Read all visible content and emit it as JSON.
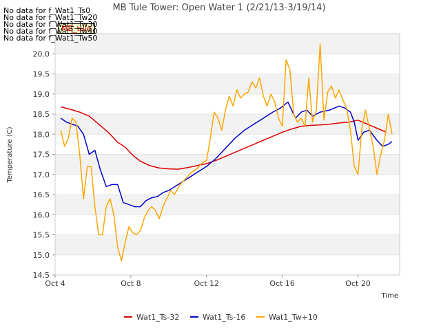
{
  "chart_data": {
    "type": "line",
    "title": "MB Tule Tower: Open Water 1 (2/21/13-3/19/14)",
    "xlabel": "Time",
    "ylabel": "Temperature (C)",
    "xlim": [
      4.0,
      22.2
    ],
    "ylim": [
      14.5,
      20.5
    ],
    "x_ticks": [
      4,
      8,
      12,
      16,
      20
    ],
    "x_tick_labels": [
      "Oct 4",
      "Oct 8",
      "Oct 12",
      "Oct 16",
      "Oct 20"
    ],
    "y_ticks": [
      14.5,
      15.0,
      15.5,
      16.0,
      16.5,
      17.0,
      17.5,
      18.0,
      18.5,
      19.0,
      19.5,
      20.0
    ],
    "y_tick_labels": [
      "14.5",
      "15.0",
      "15.5",
      "16.0",
      "16.5",
      "17.0",
      "17.5",
      "18.0",
      "18.5",
      "19.0",
      "19.5",
      "20.0"
    ],
    "legend_position": "bottom-center",
    "series": [
      {
        "name": "Wat1_Ts-32",
        "color": "#dd0000",
        "x": [
          4.3,
          4.8,
          5.3,
          5.8,
          6.3,
          6.8,
          7.3,
          7.7,
          8.1,
          8.5,
          9.0,
          9.5,
          10.0,
          10.5,
          11.0,
          11.5,
          12.0,
          12.5,
          13.0,
          13.5,
          14.0,
          14.5,
          15.0,
          15.5,
          16.0,
          16.5,
          17.0,
          17.5,
          18.0,
          18.5,
          19.0,
          19.5,
          20.0,
          20.5,
          21.0,
          21.5
        ],
        "values": [
          18.68,
          18.62,
          18.55,
          18.45,
          18.25,
          18.05,
          17.8,
          17.68,
          17.48,
          17.33,
          17.22,
          17.16,
          17.14,
          17.13,
          17.17,
          17.22,
          17.27,
          17.35,
          17.45,
          17.55,
          17.65,
          17.75,
          17.85,
          17.95,
          18.05,
          18.13,
          18.2,
          18.22,
          18.23,
          18.25,
          18.28,
          18.3,
          18.35,
          18.25,
          18.15,
          18.05
        ]
      },
      {
        "name": "Wat1_Ts-16",
        "color": "#0000cc",
        "x": [
          4.3,
          4.6,
          4.9,
          5.2,
          5.5,
          5.8,
          6.1,
          6.4,
          6.7,
          7.0,
          7.3,
          7.6,
          7.9,
          8.2,
          8.5,
          8.8,
          9.1,
          9.4,
          9.7,
          10.0,
          10.5,
          11.0,
          11.5,
          12.0,
          12.5,
          13.0,
          13.5,
          14.0,
          14.5,
          15.0,
          15.5,
          15.9,
          16.3,
          16.7,
          17.0,
          17.3,
          17.6,
          18.0,
          18.5,
          19.0,
          19.3,
          19.6,
          19.8,
          20.0,
          20.3,
          20.6,
          21.0,
          21.3,
          21.6,
          21.8
        ],
        "values": [
          18.4,
          18.3,
          18.25,
          18.2,
          18.0,
          17.5,
          17.6,
          17.1,
          16.7,
          16.75,
          16.75,
          16.3,
          16.25,
          16.2,
          16.2,
          16.35,
          16.42,
          16.45,
          16.55,
          16.6,
          16.75,
          16.9,
          17.05,
          17.2,
          17.4,
          17.65,
          17.9,
          18.1,
          18.25,
          18.4,
          18.55,
          18.65,
          18.8,
          18.4,
          18.55,
          18.6,
          18.45,
          18.55,
          18.6,
          18.7,
          18.65,
          18.55,
          18.3,
          17.85,
          18.05,
          18.1,
          17.85,
          17.7,
          17.75,
          17.82
        ]
      },
      {
        "name": "Wat1_Tw+10",
        "color": "#ffa500",
        "x": [
          4.3,
          4.5,
          4.7,
          4.9,
          5.1,
          5.3,
          5.5,
          5.7,
          5.9,
          6.1,
          6.3,
          6.5,
          6.7,
          6.9,
          7.1,
          7.3,
          7.5,
          7.7,
          7.9,
          8.1,
          8.3,
          8.5,
          8.7,
          8.9,
          9.1,
          9.3,
          9.5,
          9.7,
          9.9,
          10.1,
          10.3,
          10.6,
          10.9,
          11.2,
          11.5,
          11.8,
          12.0,
          12.2,
          12.4,
          12.6,
          12.8,
          13.0,
          13.2,
          13.4,
          13.6,
          13.8,
          14.0,
          14.2,
          14.4,
          14.6,
          14.8,
          15.0,
          15.2,
          15.4,
          15.6,
          15.8,
          16.0,
          16.2,
          16.4,
          16.6,
          16.8,
          17.0,
          17.2,
          17.4,
          17.6,
          17.8,
          18.0,
          18.2,
          18.4,
          18.6,
          18.8,
          19.0,
          19.2,
          19.4,
          19.6,
          19.8,
          20.0,
          20.2,
          20.4,
          20.6,
          20.8,
          21.0,
          21.2,
          21.4,
          21.6,
          21.8
        ],
        "values": [
          18.1,
          17.7,
          17.9,
          18.4,
          18.3,
          17.5,
          16.4,
          17.2,
          17.2,
          16.2,
          15.5,
          15.5,
          16.2,
          16.4,
          16.0,
          15.2,
          14.85,
          15.3,
          15.7,
          15.55,
          15.5,
          15.6,
          15.9,
          16.1,
          16.2,
          16.1,
          15.9,
          16.2,
          16.4,
          16.6,
          16.5,
          16.75,
          16.9,
          17.05,
          17.15,
          17.3,
          17.35,
          17.9,
          18.55,
          18.4,
          18.1,
          18.6,
          18.95,
          18.7,
          19.1,
          18.9,
          19.0,
          19.05,
          19.3,
          19.15,
          19.4,
          18.95,
          18.7,
          19.0,
          18.8,
          18.4,
          18.2,
          19.85,
          19.6,
          18.5,
          18.3,
          18.4,
          18.2,
          19.4,
          18.3,
          18.6,
          20.25,
          18.35,
          19.05,
          19.2,
          18.9,
          19.1,
          18.85,
          18.65,
          18.1,
          17.2,
          17.0,
          18.15,
          18.6,
          18.15,
          17.7,
          17.0,
          17.5,
          17.85,
          18.5,
          18.0
        ]
      }
    ],
    "no_data_notes": [
      "No data for f_Wat1_Ts0",
      "No data for f_Wat1_Tw20",
      "No data for f_Wat1_Tw30",
      "No data for f_Wat1_Tw40",
      "No data for f_Wat1_Tw50"
    ],
    "tooltip_label": "MB_tule"
  }
}
